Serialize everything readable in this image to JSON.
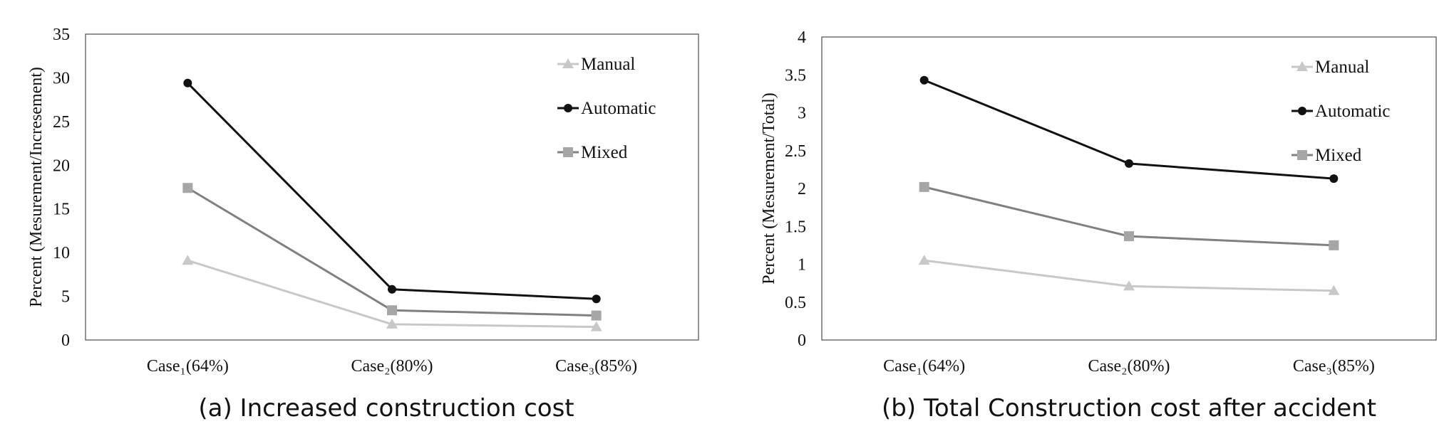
{
  "chart_data": [
    {
      "type": "line",
      "caption": "(a) Increased construction cost",
      "categories": [
        "Case₁(64%)",
        "Case₂(80%)",
        "Case₃(85%)"
      ],
      "ylabel": "Percent (Mesurement/Incresement)",
      "xlabel": "",
      "ylim": [
        0,
        35
      ],
      "yticks": [
        "0",
        "5",
        "10",
        "15",
        "20",
        "25",
        "30",
        "35"
      ],
      "legend_position": "top-right",
      "series": [
        {
          "name": "Manual",
          "marker": "triangle",
          "color": "#c8c8c8",
          "values": [
            9.1,
            1.8,
            1.5
          ]
        },
        {
          "name": "Automatic",
          "marker": "circle",
          "color": "#111111",
          "values": [
            29.4,
            5.8,
            4.7
          ]
        },
        {
          "name": "Mixed",
          "marker": "square",
          "color": "#808080",
          "marker_color": "#a6a6a6",
          "values": [
            17.4,
            3.4,
            2.8
          ]
        }
      ]
    },
    {
      "type": "line",
      "caption": "(b) Total Construction cost after accident",
      "categories": [
        "Case₁(64%)",
        "Case₂(80%)",
        "Case₃(85%)"
      ],
      "ylabel": "Percent (Mesurement/Total)",
      "xlabel": "",
      "ylim": [
        0,
        4
      ],
      "yticks": [
        "0",
        "0.5",
        "1",
        "1.5",
        "2",
        "2.5",
        "3",
        "3.5",
        "4"
      ],
      "legend_position": "top-right",
      "series": [
        {
          "name": "Manual",
          "marker": "triangle",
          "color": "#c8c8c8",
          "values": [
            1.05,
            0.71,
            0.65
          ]
        },
        {
          "name": "Automatic",
          "marker": "circle",
          "color": "#111111",
          "values": [
            3.43,
            2.33,
            2.13
          ]
        },
        {
          "name": "Mixed",
          "marker": "square",
          "color": "#808080",
          "marker_color": "#a6a6a6",
          "values": [
            2.02,
            1.37,
            1.25
          ]
        }
      ]
    }
  ]
}
